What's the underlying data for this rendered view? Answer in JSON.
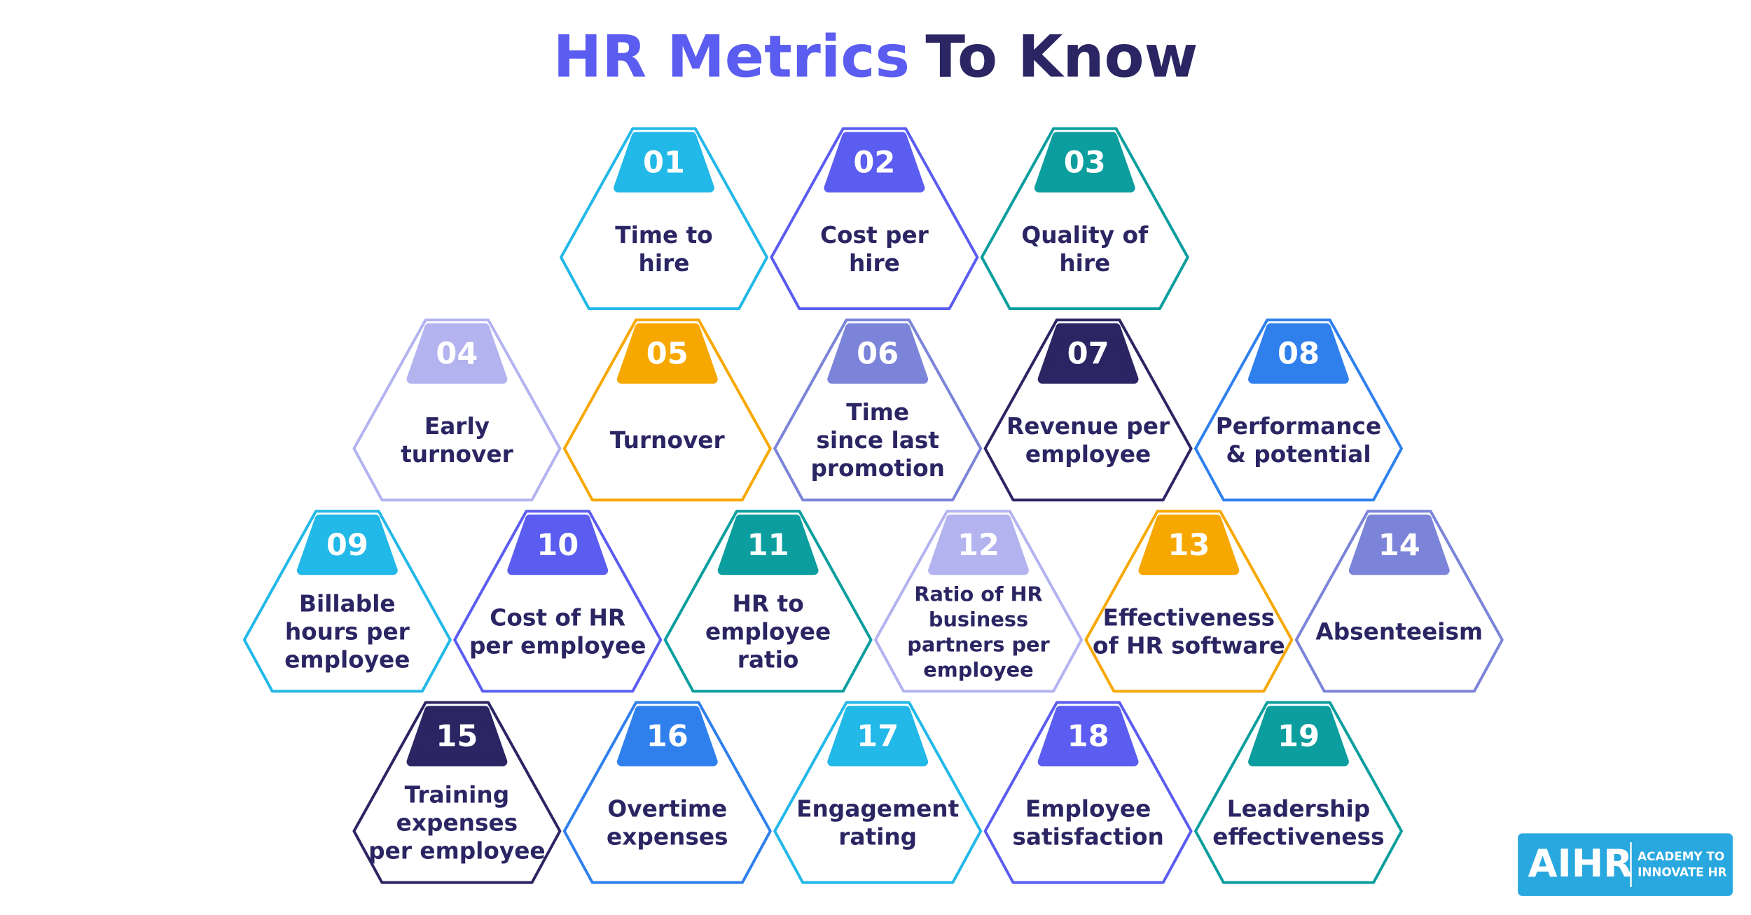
{
  "title": {
    "highlight": "HR Metrics",
    "rest": "To Know"
  },
  "items": [
    {
      "number": "01",
      "label": [
        "Time to",
        "hire"
      ],
      "color": "#22b8e8"
    },
    {
      "number": "02",
      "label": [
        "Cost per",
        "hire"
      ],
      "color": "#5b5cf0"
    },
    {
      "number": "03",
      "label": [
        "Quality of",
        "hire"
      ],
      "color": "#0c9e9e"
    },
    {
      "number": "04",
      "label": [
        "Early",
        "turnover"
      ],
      "color": "#b3b3f0"
    },
    {
      "number": "05",
      "label": [
        "Turnover"
      ],
      "color": "#f7a800"
    },
    {
      "number": "06",
      "label": [
        "Time",
        "since last",
        "promotion"
      ],
      "color": "#7b84d8"
    },
    {
      "number": "07",
      "label": [
        "Revenue per",
        "employee"
      ],
      "color": "#2b2563"
    },
    {
      "number": "08",
      "label": [
        "Performance",
        "& potential"
      ],
      "color": "#2f80ed"
    },
    {
      "number": "09",
      "label": [
        "Billable",
        "hours per",
        "employee"
      ],
      "color": "#22b8e8"
    },
    {
      "number": "10",
      "label": [
        "Cost of HR",
        "per employee"
      ],
      "color": "#5b5cf0"
    },
    {
      "number": "11",
      "label": [
        "HR to",
        "employee",
        "ratio"
      ],
      "color": "#0c9e9e"
    },
    {
      "number": "12",
      "label": [
        "Ratio of HR",
        "business",
        "partners per",
        "employee"
      ],
      "color": "#b3b3f0"
    },
    {
      "number": "13",
      "label": [
        "Effectiveness",
        "of HR software"
      ],
      "color": "#f7a800"
    },
    {
      "number": "14",
      "label": [
        "Absenteeism"
      ],
      "color": "#7b84d8"
    },
    {
      "number": "15",
      "label": [
        "Training",
        "expenses",
        "per employee"
      ],
      "color": "#2b2563"
    },
    {
      "number": "16",
      "label": [
        "Overtime",
        "expenses"
      ],
      "color": "#2f80ed"
    },
    {
      "number": "17",
      "label": [
        "Engagement",
        "rating"
      ],
      "color": "#22b8e8"
    },
    {
      "number": "18",
      "label": [
        "Employee",
        "satisfaction"
      ],
      "color": "#5b5cf0"
    },
    {
      "number": "19",
      "label": [
        "Leadership",
        "effectiveness"
      ],
      "color": "#0c9e9e"
    }
  ],
  "logo": {
    "name": "AIHR",
    "tagline": [
      "ACADEMY TO",
      "INNOVATE HR"
    ]
  }
}
